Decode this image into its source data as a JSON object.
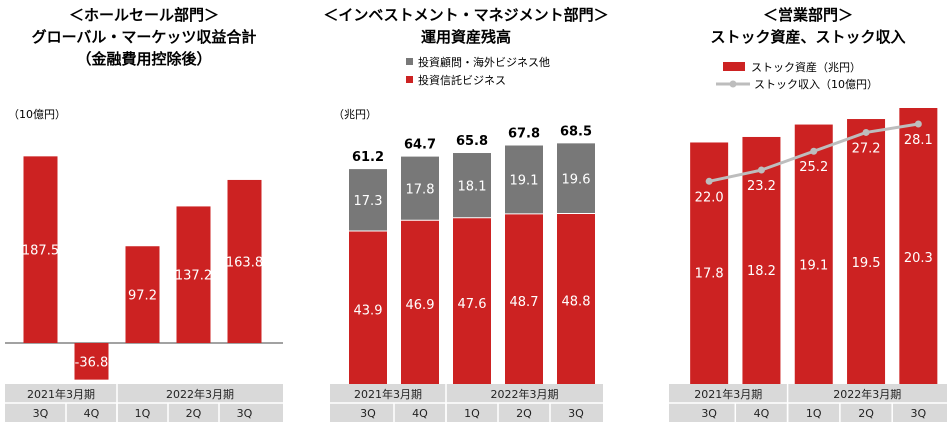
{
  "colors": {
    "red": "#cc2222",
    "gray": "#787878",
    "line": "#bdbdbd",
    "table_fill": "#d9d9d9",
    "table_text": "#222222",
    "black": "#000000",
    "white": "#ffffff"
  },
  "chart_data": [
    {
      "type": "bar",
      "title_lines": [
        "＜ホールセール部門＞",
        "グローバル・マーケッツ収益合計",
        "（金融費用控除後）"
      ],
      "unit": "（10億円）",
      "categories": [
        "3Q",
        "4Q",
        "1Q",
        "2Q",
        "3Q"
      ],
      "periods": [
        {
          "label": "2021年3月期",
          "span": 2
        },
        {
          "label": "2022年3月期",
          "span": 3
        }
      ],
      "series": [
        {
          "values": [
            187.5,
            -36.8,
            97.2,
            137.2,
            163.8
          ]
        }
      ],
      "data_labels": [
        "187.5",
        "-36.8",
        "97.2",
        "137.2",
        "163.8"
      ],
      "ylim": [
        -45,
        220
      ],
      "zero_line": true
    },
    {
      "type": "bar",
      "stacked": true,
      "title_lines": [
        "＜インベストメント・マネジメント部門＞",
        "運用資産残高"
      ],
      "unit": "（兆円）",
      "categories": [
        "3Q",
        "4Q",
        "1Q",
        "2Q",
        "3Q"
      ],
      "periods": [
        {
          "label": "2021年3月期",
          "span": 2
        },
        {
          "label": "2022年3月期",
          "span": 3
        }
      ],
      "legend_position": "top",
      "series": [
        {
          "name": "投資信託ビジネス",
          "values": [
            43.9,
            46.9,
            47.6,
            48.7,
            48.8
          ],
          "labels": [
            "43.9",
            "46.9",
            "47.6",
            "48.7",
            "48.8"
          ]
        },
        {
          "name": "投資顧問・海外ビジネス他",
          "values": [
            17.3,
            17.8,
            18.1,
            19.1,
            19.6
          ],
          "labels": [
            "17.3",
            "17.8",
            "18.1",
            "19.1",
            "19.6"
          ]
        }
      ],
      "totals": [
        61.2,
        64.7,
        65.8,
        67.8,
        68.5
      ],
      "total_labels": [
        "61.2",
        "64.7",
        "65.8",
        "67.8",
        "68.5"
      ],
      "ylim": [
        0,
        80
      ]
    },
    {
      "type": "bar",
      "combo_line": true,
      "title_lines": [
        "＜営業部門＞",
        "ストック資産、ストック収入"
      ],
      "categories": [
        "3Q",
        "4Q",
        "1Q",
        "2Q",
        "3Q"
      ],
      "periods": [
        {
          "label": "2021年3月期",
          "span": 2
        },
        {
          "label": "2022年3月期",
          "span": 3
        }
      ],
      "legend_position": "top",
      "series": [
        {
          "name": "ストック資産（兆円）",
          "kind": "bar",
          "values": [
            17.8,
            18.2,
            19.1,
            19.5,
            20.3
          ],
          "labels": [
            "17.8",
            "18.2",
            "19.1",
            "19.5",
            "20.3"
          ]
        },
        {
          "name": "ストック収入（10億円）",
          "kind": "line",
          "values": [
            22.0,
            23.2,
            25.2,
            27.2,
            28.1
          ],
          "labels": [
            "22.0",
            "23.2",
            "25.2",
            "27.2",
            "28.1"
          ]
        }
      ],
      "ylim_bar": [
        0,
        21.5
      ],
      "ylim_line": [
        0,
        34
      ]
    }
  ]
}
